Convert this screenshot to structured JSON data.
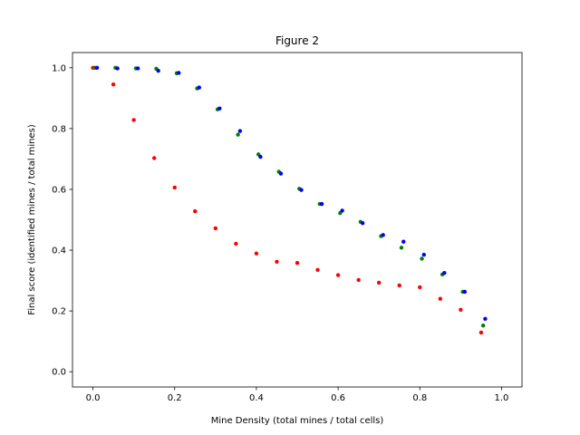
{
  "chart_data": {
    "type": "scatter",
    "title": "Figure 2",
    "xlabel": "Mine Density (total mines / total cells)",
    "ylabel": "Final score (identified mines / total mines)",
    "xlim": [
      -0.05,
      1.05
    ],
    "ylim": [
      -0.05,
      1.05
    ],
    "xticks": [
      0.0,
      0.2,
      0.4,
      0.6,
      0.8,
      1.0
    ],
    "yticks": [
      0.0,
      0.2,
      0.4,
      0.6,
      0.8,
      1.0
    ],
    "xtick_labels": [
      "0.0",
      "0.2",
      "0.4",
      "0.6",
      "0.8",
      "1.0"
    ],
    "ytick_labels": [
      "0.0",
      "0.2",
      "0.4",
      "0.6",
      "0.8",
      "1.0"
    ],
    "grid": false,
    "series": [
      {
        "color": "#ff0000",
        "x": [
          0.0,
          0.05,
          0.1,
          0.15,
          0.2,
          0.25,
          0.3,
          0.35,
          0.4,
          0.45,
          0.5,
          0.55,
          0.6,
          0.65,
          0.7,
          0.75,
          0.8,
          0.85,
          0.9,
          0.95
        ],
        "y": [
          1.0,
          0.945,
          0.828,
          0.703,
          0.606,
          0.528,
          0.472,
          0.421,
          0.389,
          0.362,
          0.358,
          0.335,
          0.318,
          0.302,
          0.293,
          0.284,
          0.278,
          0.24,
          0.204,
          0.129
        ]
      },
      {
        "color": "#008000",
        "x": [
          0.005,
          0.055,
          0.105,
          0.155,
          0.205,
          0.255,
          0.305,
          0.355,
          0.405,
          0.455,
          0.505,
          0.555,
          0.605,
          0.655,
          0.705,
          0.755,
          0.805,
          0.855,
          0.905,
          0.955
        ],
        "y": [
          1.0,
          1.0,
          0.998,
          0.997,
          0.982,
          0.932,
          0.863,
          0.78,
          0.715,
          0.658,
          0.602,
          0.552,
          0.522,
          0.493,
          0.446,
          0.408,
          0.372,
          0.32,
          0.263,
          0.152
        ]
      },
      {
        "color": "#0000ff",
        "x": [
          0.01,
          0.06,
          0.11,
          0.16,
          0.21,
          0.26,
          0.31,
          0.36,
          0.41,
          0.46,
          0.51,
          0.56,
          0.61,
          0.66,
          0.71,
          0.76,
          0.81,
          0.86,
          0.91,
          0.96
        ],
        "y": [
          1.0,
          0.998,
          0.998,
          0.99,
          0.983,
          0.935,
          0.866,
          0.792,
          0.707,
          0.652,
          0.598,
          0.552,
          0.53,
          0.489,
          0.45,
          0.428,
          0.385,
          0.325,
          0.263,
          0.174
        ]
      }
    ]
  }
}
